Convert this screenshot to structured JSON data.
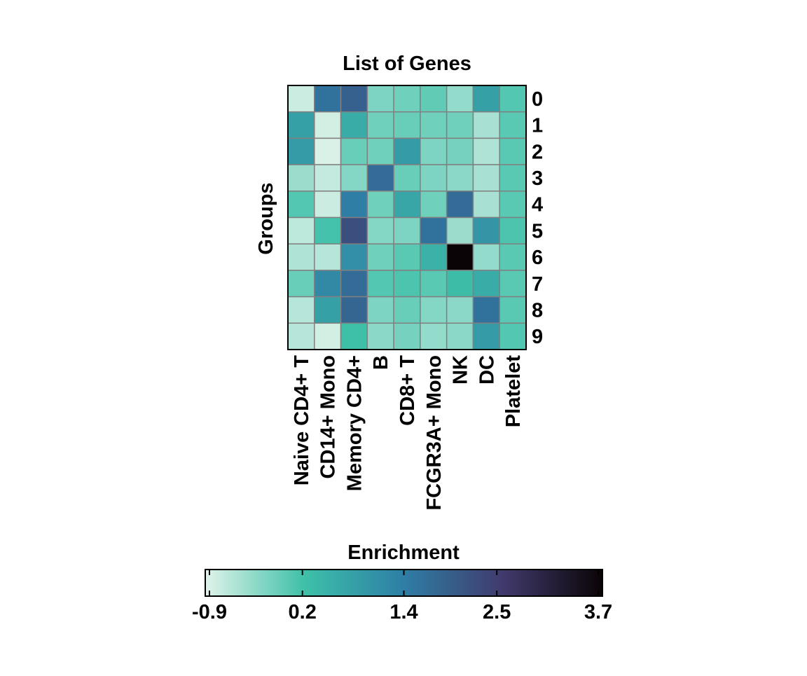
{
  "chart_data": {
    "type": "heatmap",
    "title": "List of Genes",
    "ylabel": "Groups",
    "xlabel": "",
    "columns": [
      "Naive CD4+ T",
      "CD14+ Mono",
      "Memory CD4+",
      "B",
      "CD8+ T",
      "FCGR3A+ Mono",
      "NK",
      "DC",
      "Platelet"
    ],
    "rows": [
      "0",
      "1",
      "2",
      "3",
      "4",
      "5",
      "6",
      "7",
      "8",
      "9"
    ],
    "values": [
      [
        -0.75,
        1.6,
        1.9,
        -0.2,
        -0.1,
        0.0,
        -0.35,
        0.8,
        0.1
      ],
      [
        0.8,
        -0.8,
        0.6,
        -0.1,
        -0.05,
        -0.1,
        -0.1,
        -0.5,
        0.05
      ],
      [
        0.9,
        -0.85,
        -0.05,
        -0.1,
        0.9,
        -0.2,
        -0.15,
        -0.55,
        0.05
      ],
      [
        -0.4,
        -0.7,
        -0.25,
        1.7,
        -0.05,
        -0.2,
        -0.3,
        -0.5,
        0.05
      ],
      [
        0.1,
        -0.75,
        1.4,
        -0.1,
        0.7,
        -0.1,
        1.7,
        -0.5,
        0.05
      ],
      [
        -0.65,
        0.2,
        2.2,
        -0.25,
        -0.2,
        1.6,
        -0.4,
        1.0,
        0.15
      ],
      [
        -0.55,
        -0.6,
        1.1,
        -0.1,
        0.05,
        0.5,
        3.7,
        -0.35,
        0.05
      ],
      [
        -0.05,
        1.2,
        1.7,
        0.1,
        0.15,
        0.05,
        0.3,
        0.6,
        0.05
      ],
      [
        -0.6,
        0.8,
        1.8,
        -0.2,
        -0.05,
        -0.25,
        -0.3,
        1.6,
        0.05
      ],
      [
        -0.6,
        -0.8,
        0.25,
        -0.3,
        -0.15,
        -0.35,
        -0.3,
        0.9,
        0.1
      ]
    ],
    "colorbar": {
      "label": "Enrichment",
      "min": -0.9,
      "max": 3.7,
      "ticks": [
        -0.9,
        0.2,
        1.4,
        2.5,
        3.7
      ],
      "tick_labels": [
        "-0.9",
        "0.2",
        "1.4",
        "2.5",
        "3.7"
      ],
      "colors": [
        "#e0f3ea",
        "#3ec0a8",
        "#2e7ea6",
        "#413a6c",
        "#0a0406"
      ]
    },
    "cell_border_color": "#808080",
    "legend_position": "bottom"
  }
}
